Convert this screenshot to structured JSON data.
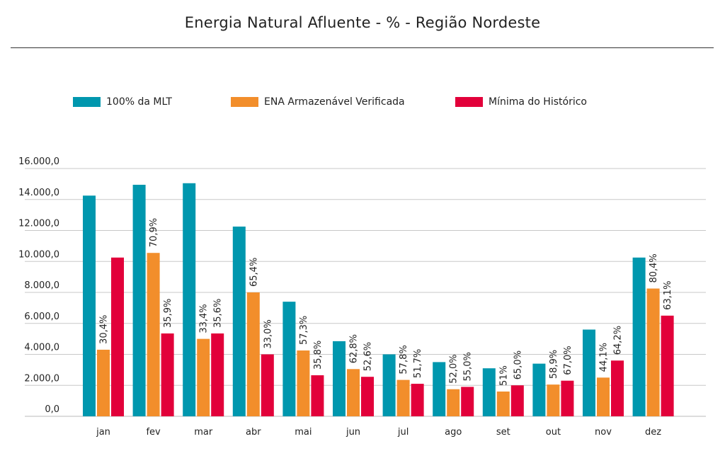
{
  "chart_data": {
    "type": "bar",
    "title": "Energia Natural Afluente - % - Região Nordeste",
    "xlabel": "",
    "ylabel": "",
    "ylim": [
      0,
      16000
    ],
    "y_ticks": [
      "0,0",
      "2.000,0",
      "4.000,0",
      "6.000,0",
      "8.000,0",
      "10.000,0",
      "12.000,0",
      "14.000,0",
      "16.000,0"
    ],
    "y_tick_values": [
      0,
      2000,
      4000,
      6000,
      8000,
      10000,
      12000,
      14000,
      16000
    ],
    "grid": true,
    "legend_position": "top",
    "categories": [
      "jan",
      "fev",
      "mar",
      "abr",
      "mai",
      "jun",
      "jul",
      "ago",
      "set",
      "out",
      "nov",
      "dez"
    ],
    "series": [
      {
        "name": "100% da MLT",
        "color": "#0097ae",
        "values": [
          14250,
          14950,
          15050,
          12250,
          7400,
          4850,
          4000,
          3500,
          3100,
          3400,
          5600,
          10250
        ],
        "labels": []
      },
      {
        "name": "ENA Armazenável Verificada",
        "color": "#f28e2b",
        "values": [
          4300,
          10550,
          5000,
          8000,
          4250,
          3050,
          2350,
          1750,
          1600,
          2050,
          2500,
          8250
        ],
        "labels": [
          "30,4%",
          "70,9%",
          "33,4%",
          "65,4%",
          "57,3%",
          "62,8%",
          "57,8%",
          "52,0%",
          "51%",
          "58,9%",
          "44,1%",
          "80,4%"
        ]
      },
      {
        "name": "Mínima do Histórico",
        "color": "#e2003a",
        "values": [
          10250,
          5350,
          5350,
          4000,
          2650,
          2550,
          2100,
          1900,
          2000,
          2300,
          3600,
          6500
        ],
        "labels": [
          "",
          "35,9%",
          "35,6%",
          "33,0%",
          "35,8%",
          "52,6%",
          "51,7%",
          "55,0%",
          "65,0%",
          "67,0%",
          "64,2%",
          "63,1%"
        ]
      }
    ]
  }
}
